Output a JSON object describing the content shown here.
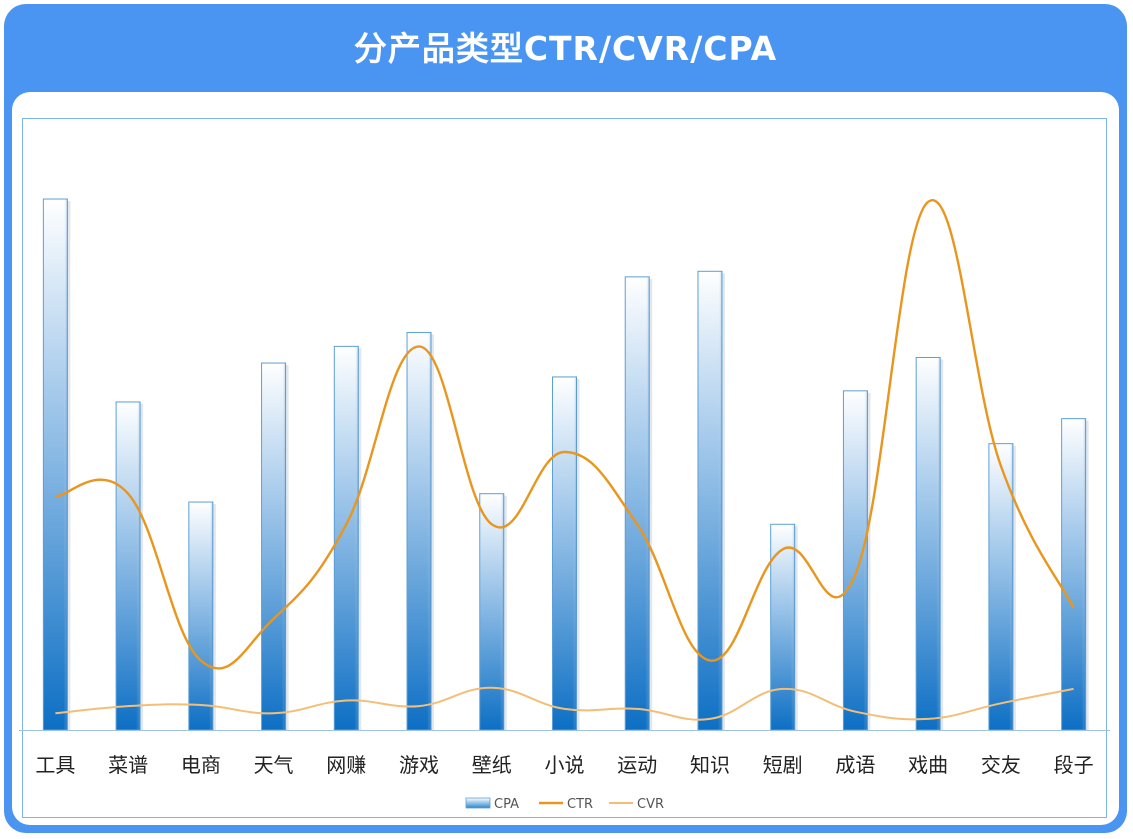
{
  "header": {
    "title": "分产品类型CTR/CVR/CPA"
  },
  "colors": {
    "frame": "#4b95f2",
    "bar_top": "#ffffff",
    "bar_bottom": "#0d6fc4",
    "ctr": "#e8961e",
    "cvr": "#f3bf78"
  },
  "chart_data": {
    "type": "bar",
    "title": "",
    "xlabel": "",
    "ylabel": "",
    "categories": [
      "工具",
      "菜谱",
      "电商",
      "天气",
      "网赚",
      "游戏",
      "壁纸",
      "小说",
      "运动",
      "知识",
      "短剧",
      "成语",
      "戏曲",
      "交友",
      "段子"
    ],
    "ylim": [
      0,
      100
    ],
    "series": [
      {
        "name": "CPA",
        "type": "bar",
        "values": [
          95.5,
          59.0,
          41.0,
          66.0,
          69.0,
          71.5,
          42.5,
          63.5,
          81.5,
          82.5,
          37.0,
          61.0,
          67.0,
          51.5,
          56.0
        ]
      },
      {
        "name": "CTR",
        "type": "line",
        "values": [
          42.0,
          42.5,
          12.5,
          20.0,
          37.0,
          69.0,
          37.0,
          50.0,
          37.0,
          12.5,
          32.5,
          28.0,
          95.0,
          47.5,
          22.0
        ]
      },
      {
        "name": "CVR",
        "type": "line",
        "values": [
          3.0,
          4.3,
          4.5,
          3.0,
          5.3,
          4.3,
          7.6,
          3.8,
          3.8,
          2.0,
          7.4,
          3.3,
          2.0,
          4.8,
          7.4
        ]
      }
    ],
    "legend": {
      "position": "bottom",
      "entries": [
        "CPA",
        "CTR",
        "CVR"
      ]
    },
    "grid": false
  }
}
